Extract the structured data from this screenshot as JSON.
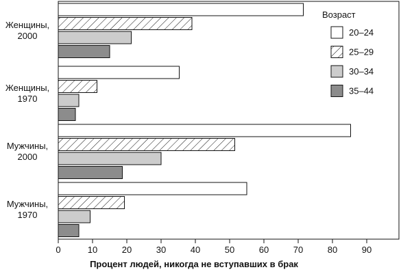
{
  "chart_data": {
    "type": "bar",
    "orientation": "horizontal",
    "categories": [
      [
        "Женщины,",
        "2000"
      ],
      [
        "Женщины,",
        "1970"
      ],
      [
        "Мужчины,",
        "2000"
      ],
      [
        "Мужчины,",
        "1970"
      ]
    ],
    "series": [
      {
        "name": "20–24",
        "fill": "#ffffff",
        "pattern": "none",
        "values": [
          71.5,
          35.3,
          85.3,
          55.0
        ]
      },
      {
        "name": "25–29",
        "fill": "#ffffff",
        "pattern": "hatch",
        "values": [
          39.0,
          11.3,
          51.5,
          19.3
        ]
      },
      {
        "name": "30–34",
        "fill": "#cccccc",
        "pattern": "none",
        "values": [
          21.3,
          6.0,
          30.0,
          9.3
        ]
      },
      {
        "name": "35–44",
        "fill": "#8c8c8c",
        "pattern": "none",
        "values": [
          15.0,
          5.0,
          18.7,
          6.0
        ]
      }
    ],
    "xlabel": "Процент людей, никогда не вступавших в брак",
    "xlim": [
      0,
      90
    ],
    "xticks": [
      0,
      10,
      20,
      30,
      40,
      50,
      60,
      70,
      80,
      90
    ],
    "legend": {
      "title": "Возраст",
      "position": "top-right"
    },
    "grid": false
  }
}
